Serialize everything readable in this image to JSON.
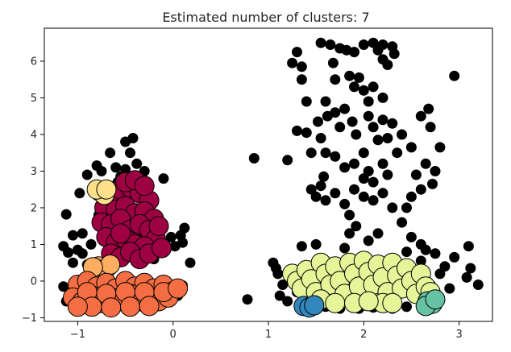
{
  "chart_data": {
    "type": "scatter",
    "title": "Estimated number of clusters: 7",
    "xlabel": "",
    "ylabel": "",
    "xlim": [
      -1.35,
      3.35
    ],
    "ylim": [
      -1.1,
      6.9
    ],
    "x_ticks": [
      -1,
      0,
      1,
      2,
      3
    ],
    "x_tick_labels": [
      "−1",
      "0",
      "1",
      "2",
      "3"
    ],
    "y_ticks": [
      -1,
      0,
      1,
      2,
      3,
      4,
      5,
      6
    ],
    "y_tick_labels": [
      "−1",
      "0",
      "1",
      "2",
      "3",
      "4",
      "5",
      "6"
    ],
    "grid": false,
    "legend": "none",
    "core_marker_size": "large",
    "noise_marker_size": "small",
    "series": [
      {
        "name": "",
        "role": "noise",
        "color": "#000000",
        "points": [
          [
            -1.12,
            1.82
          ],
          [
            -1.05,
            1.25
          ],
          [
            -1.1,
            0.78
          ],
          [
            -1.15,
            0.95
          ],
          [
            -1.0,
            0.85
          ],
          [
            -0.98,
            2.4
          ],
          [
            -0.9,
            2.9
          ],
          [
            -0.95,
            1.3
          ],
          [
            -0.86,
            1.0
          ],
          [
            -0.8,
            3.15
          ],
          [
            -0.75,
            3.0
          ],
          [
            -0.66,
            3.5
          ],
          [
            -0.6,
            3.1
          ],
          [
            -0.55,
            2.85
          ],
          [
            -0.5,
            3.8
          ],
          [
            -0.45,
            3.5
          ],
          [
            -0.38,
            3.2
          ],
          [
            -0.3,
            3.0
          ],
          [
            -0.25,
            2.6
          ],
          [
            -0.2,
            2.2
          ],
          [
            -0.1,
            2.8
          ],
          [
            -0.5,
            3.05
          ],
          [
            -0.42,
            3.9
          ],
          [
            -0.58,
            2.7
          ],
          [
            0.12,
            1.45
          ],
          [
            0.1,
            1.05
          ],
          [
            0.08,
            1.25
          ],
          [
            0.18,
            0.5
          ],
          [
            0.1,
            -0.12
          ],
          [
            0.05,
            -0.4
          ],
          [
            -0.68,
            0.82
          ],
          [
            -0.02,
            1.2
          ],
          [
            -0.95,
            0.75
          ],
          [
            -1.05,
            0.5
          ],
          [
            -0.9,
            0.45
          ],
          [
            -1.15,
            -0.15
          ],
          [
            -1.12,
            -0.55
          ],
          [
            -0.7,
            2.2
          ],
          [
            -0.78,
            1.8
          ],
          [
            -0.3,
            1.25
          ],
          [
            -0.25,
            1.05
          ],
          [
            -0.2,
            0.6
          ],
          [
            0.02,
            0.95
          ],
          [
            -0.7,
            0.6
          ],
          [
            0.78,
            -0.5
          ],
          [
            0.85,
            3.35
          ],
          [
            1.2,
            3.3
          ],
          [
            1.05,
            0.5
          ],
          [
            1.08,
            0.35
          ],
          [
            1.1,
            0.2
          ],
          [
            1.15,
            -0.1
          ],
          [
            1.12,
            -0.4
          ],
          [
            1.2,
            -0.55
          ],
          [
            1.25,
            5.95
          ],
          [
            1.3,
            6.25
          ],
          [
            1.35,
            5.5
          ],
          [
            1.3,
            4.1
          ],
          [
            1.4,
            4.05
          ],
          [
            1.45,
            3.5
          ],
          [
            1.4,
            4.9
          ],
          [
            1.35,
            5.85
          ],
          [
            1.55,
            6.5
          ],
          [
            1.65,
            6.45
          ],
          [
            1.75,
            6.35
          ],
          [
            1.82,
            6.3
          ],
          [
            1.9,
            6.25
          ],
          [
            2.0,
            6.45
          ],
          [
            2.1,
            6.5
          ],
          [
            2.15,
            6.3
          ],
          [
            2.2,
            6.45
          ],
          [
            2.3,
            6.4
          ],
          [
            2.32,
            6.2
          ],
          [
            2.25,
            5.9
          ],
          [
            2.2,
            6.05
          ],
          [
            1.68,
            5.95
          ],
          [
            1.7,
            5.5
          ],
          [
            1.85,
            5.6
          ],
          [
            1.9,
            5.3
          ],
          [
            1.95,
            5.55
          ],
          [
            2.0,
            5.2
          ],
          [
            2.05,
            4.9
          ],
          [
            2.1,
            5.3
          ],
          [
            2.2,
            5.0
          ],
          [
            1.6,
            4.9
          ],
          [
            1.62,
            4.5
          ],
          [
            1.7,
            4.6
          ],
          [
            1.75,
            4.2
          ],
          [
            1.8,
            4.7
          ],
          [
            1.88,
            4.35
          ],
          [
            1.92,
            4.0
          ],
          [
            2.05,
            4.5
          ],
          [
            2.1,
            4.2
          ],
          [
            2.15,
            3.85
          ],
          [
            2.2,
            4.4
          ],
          [
            2.25,
            3.9
          ],
          [
            2.3,
            4.3
          ],
          [
            2.4,
            4.0
          ],
          [
            1.52,
            4.35
          ],
          [
            1.55,
            3.9
          ],
          [
            1.6,
            3.5
          ],
          [
            1.7,
            3.4
          ],
          [
            1.8,
            3.1
          ],
          [
            1.9,
            3.2
          ],
          [
            2.0,
            3.5
          ],
          [
            2.05,
            3.0
          ],
          [
            2.1,
            2.7
          ],
          [
            2.2,
            3.2
          ],
          [
            2.25,
            2.9
          ],
          [
            2.35,
            3.5
          ],
          [
            2.5,
            3.65
          ],
          [
            2.6,
            4.5
          ],
          [
            2.7,
            4.2
          ],
          [
            2.68,
            4.7
          ],
          [
            2.65,
            3.2
          ],
          [
            2.55,
            2.9
          ],
          [
            2.6,
            2.5
          ],
          [
            2.5,
            2.3
          ],
          [
            2.45,
            2.0
          ],
          [
            2.4,
            1.6
          ],
          [
            2.3,
            2.0
          ],
          [
            2.2,
            2.4
          ],
          [
            2.1,
            2.2
          ],
          [
            2.0,
            2.3
          ],
          [
            1.9,
            2.5
          ],
          [
            1.8,
            2.1
          ],
          [
            1.85,
            1.8
          ],
          [
            1.7,
            2.4
          ],
          [
            1.6,
            2.2
          ],
          [
            1.55,
            2.6
          ],
          [
            1.45,
            2.5
          ],
          [
            1.5,
            2.3
          ],
          [
            1.58,
            2.85
          ],
          [
            2.0,
            2.8
          ],
          [
            1.92,
            1.5
          ],
          [
            1.85,
            1.3
          ],
          [
            2.05,
            1.1
          ],
          [
            2.15,
            1.3
          ],
          [
            2.5,
            1.2
          ],
          [
            2.6,
            1.0
          ],
          [
            2.65,
            0.85
          ],
          [
            2.75,
            0.75
          ],
          [
            2.85,
            0.4
          ],
          [
            2.8,
            0.2
          ],
          [
            2.7,
            -0.1
          ],
          [
            2.9,
            -0.2
          ],
          [
            2.95,
            0.65
          ],
          [
            3.1,
            0.95
          ],
          [
            3.12,
            0.35
          ],
          [
            3.2,
            -0.1
          ],
          [
            3.08,
            0.1
          ],
          [
            2.95,
            5.6
          ],
          [
            2.8,
            3.65
          ],
          [
            2.75,
            3.0
          ],
          [
            2.72,
            2.65
          ],
          [
            2.6,
            0.55
          ],
          [
            2.55,
            0.2
          ],
          [
            2.45,
            0.8
          ],
          [
            1.35,
            0.95
          ],
          [
            1.5,
            1.0
          ],
          [
            1.8,
            0.9
          ],
          [
            1.75,
            -0.75
          ],
          [
            1.95,
            -0.75
          ],
          [
            2.1,
            -0.72
          ],
          [
            2.3,
            -0.75
          ],
          [
            2.45,
            -0.7
          ],
          [
            1.6,
            -0.7
          ],
          [
            1.3,
            -0.3
          ]
        ]
      },
      {
        "name": "",
        "role": "cluster",
        "color": "#9E0142",
        "points": [
          [
            -0.65,
            2.3
          ],
          [
            -0.55,
            2.5
          ],
          [
            -0.45,
            2.55
          ],
          [
            -0.35,
            2.4
          ],
          [
            -0.25,
            2.2
          ],
          [
            -0.72,
            2.0
          ],
          [
            -0.6,
            1.95
          ],
          [
            -0.5,
            2.05
          ],
          [
            -0.4,
            1.85
          ],
          [
            -0.3,
            1.9
          ],
          [
            -0.2,
            1.7
          ],
          [
            -0.75,
            1.6
          ],
          [
            -0.65,
            1.55
          ],
          [
            -0.55,
            1.7
          ],
          [
            -0.45,
            1.4
          ],
          [
            -0.35,
            1.55
          ],
          [
            -0.25,
            1.4
          ],
          [
            -0.18,
            1.15
          ],
          [
            -0.7,
            1.2
          ],
          [
            -0.6,
            1.05
          ],
          [
            -0.5,
            1.15
          ],
          [
            -0.4,
            1.0
          ],
          [
            -0.3,
            0.95
          ],
          [
            -0.65,
            0.75
          ],
          [
            -0.55,
            0.65
          ],
          [
            -0.45,
            0.8
          ],
          [
            -0.35,
            0.6
          ],
          [
            -0.25,
            0.75
          ],
          [
            -0.5,
            2.7
          ],
          [
            -0.4,
            2.75
          ],
          [
            -0.3,
            2.6
          ],
          [
            -0.55,
            1.3
          ],
          [
            -0.15,
            1.5
          ],
          [
            -0.12,
            0.9
          ]
        ]
      },
      {
        "name": "",
        "role": "cluster",
        "color": "#FEE08B",
        "points": [
          [
            -0.77,
            2.45
          ],
          [
            -0.72,
            2.35
          ],
          [
            -0.8,
            2.5
          ],
          [
            -0.7,
            2.5
          ]
        ]
      },
      {
        "name": "",
        "role": "cluster",
        "color": "#FDAE61",
        "points": [
          [
            -0.78,
            0.4
          ],
          [
            -0.7,
            0.35
          ],
          [
            -0.66,
            0.45
          ],
          [
            -0.84,
            0.38
          ]
        ]
      },
      {
        "name": "",
        "role": "cluster",
        "color": "#F46D43",
        "points": [
          [
            -1.0,
            -0.1
          ],
          [
            -0.9,
            0.0
          ],
          [
            -0.8,
            -0.15
          ],
          [
            -0.7,
            -0.05
          ],
          [
            -0.6,
            -0.2
          ],
          [
            -0.5,
            0.0
          ],
          [
            -0.4,
            -0.15
          ],
          [
            -0.3,
            -0.05
          ],
          [
            -0.2,
            -0.2
          ],
          [
            -0.1,
            -0.1
          ],
          [
            -0.02,
            -0.3
          ],
          [
            -1.05,
            -0.45
          ],
          [
            -0.95,
            -0.55
          ],
          [
            -0.85,
            -0.4
          ],
          [
            -0.75,
            -0.6
          ],
          [
            -0.65,
            -0.45
          ],
          [
            -0.55,
            -0.55
          ],
          [
            -0.45,
            -0.35
          ],
          [
            -0.35,
            -0.55
          ],
          [
            -0.25,
            -0.45
          ],
          [
            -0.15,
            -0.55
          ],
          [
            -0.05,
            -0.45
          ],
          [
            -0.9,
            -0.3
          ],
          [
            -0.7,
            -0.35
          ],
          [
            -0.5,
            -0.3
          ],
          [
            -0.3,
            -0.3
          ],
          [
            -0.1,
            -0.3
          ],
          [
            -0.85,
            -0.7
          ],
          [
            -0.65,
            -0.72
          ],
          [
            -0.45,
            -0.7
          ],
          [
            -0.25,
            -0.68
          ],
          [
            -1.0,
            -0.7
          ],
          [
            0.05,
            -0.2
          ]
        ]
      },
      {
        "name": "",
        "role": "cluster",
        "color": "#E6F598",
        "points": [
          [
            1.25,
            0.2
          ],
          [
            1.3,
            0.0
          ],
          [
            1.35,
            -0.2
          ],
          [
            1.4,
            0.3
          ],
          [
            1.45,
            0.05
          ],
          [
            1.5,
            -0.3
          ],
          [
            1.55,
            0.5
          ],
          [
            1.6,
            0.2
          ],
          [
            1.65,
            -0.1
          ],
          [
            1.7,
            0.4
          ],
          [
            1.75,
            0.0
          ],
          [
            1.8,
            -0.35
          ],
          [
            1.85,
            0.5
          ],
          [
            1.9,
            0.2
          ],
          [
            1.95,
            -0.15
          ],
          [
            2.0,
            0.55
          ],
          [
            2.05,
            0.25
          ],
          [
            2.1,
            -0.1
          ],
          [
            2.15,
            0.45
          ],
          [
            2.2,
            0.1
          ],
          [
            2.25,
            -0.3
          ],
          [
            2.3,
            0.5
          ],
          [
            2.35,
            0.15
          ],
          [
            2.4,
            -0.2
          ],
          [
            2.45,
            0.35
          ],
          [
            2.5,
            0.0
          ],
          [
            2.55,
            -0.35
          ],
          [
            2.6,
            0.2
          ],
          [
            2.65,
            -0.15
          ],
          [
            2.2,
            -0.6
          ],
          [
            2.3,
            -0.6
          ],
          [
            1.55,
            -0.5
          ],
          [
            1.7,
            -0.6
          ],
          [
            1.9,
            -0.6
          ],
          [
            2.05,
            -0.55
          ],
          [
            2.7,
            -0.3
          ]
        ]
      },
      {
        "name": "",
        "role": "cluster",
        "color": "#66C2A5",
        "points": [
          [
            2.67,
            -0.55
          ],
          [
            2.72,
            -0.62
          ],
          [
            2.65,
            -0.68
          ],
          [
            2.75,
            -0.5
          ]
        ]
      },
      {
        "name": "",
        "role": "cluster",
        "color": "#3288BD",
        "points": [
          [
            1.37,
            -0.68
          ],
          [
            1.43,
            -0.72
          ],
          [
            1.48,
            -0.66
          ]
        ]
      }
    ]
  }
}
